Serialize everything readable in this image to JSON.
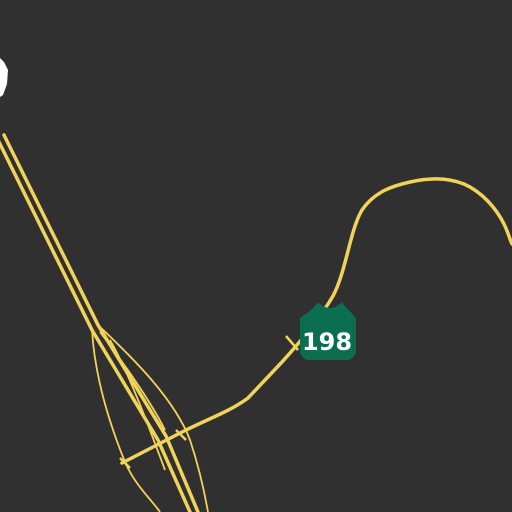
{
  "map": {
    "background_color": "#303030",
    "road_color": "#f2d35a",
    "shield_color": "#0b6e4f",
    "shield_text_color": "#ffffff",
    "road_labels": [
      {
        "kind": "state-route-shield",
        "icon": "california-state-route-shield-icon",
        "route": "198"
      }
    ]
  }
}
